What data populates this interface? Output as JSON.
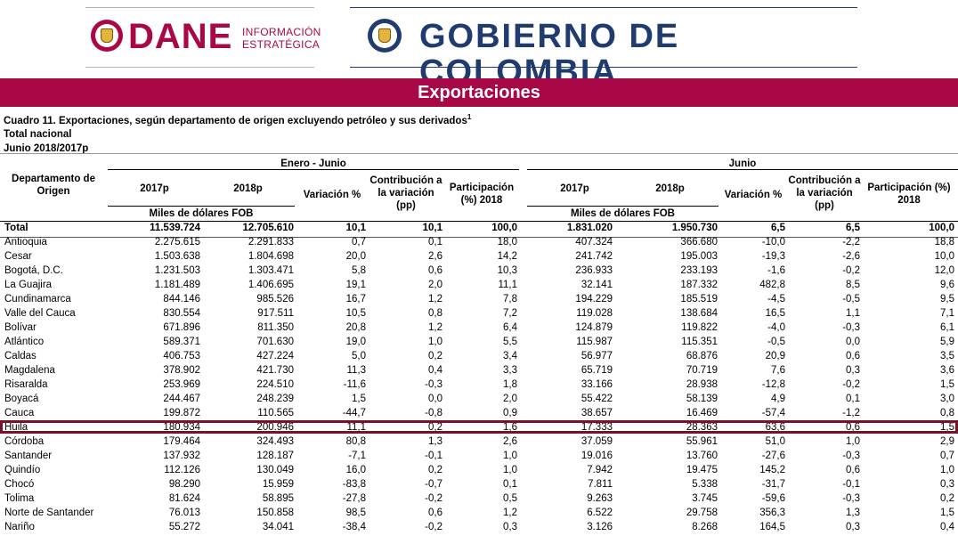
{
  "header": {
    "dane_logo_text": "DANE",
    "dane_subtitle_line1": "INFORMACIÓN",
    "dane_subtitle_line2": "ESTRATÉGICA",
    "gobierno_logo_text": "GOBIERNO DE COLOMBIA"
  },
  "banner": "Exportaciones",
  "titles": {
    "cuadro": "Cuadro 11. Exportaciones, según departamento de origen excluyendo petróleo y sus derivados",
    "footnote_mark": "1",
    "scope": "Total nacional",
    "period": "Junio 2018/2017p"
  },
  "table": {
    "col_departamento": "Departamento de Origen",
    "group_left": "Enero - Junio",
    "group_right": "Junio",
    "h_2017": "2017p",
    "h_2018": "2018p",
    "h_miles": "Miles de dólares FOB",
    "h_variacion": "Variación %",
    "h_contribucion": "Contribución a la variación (pp)",
    "h_participacion": "Participación (%) 2018",
    "rows": [
      {
        "name": "Total",
        "a": "11.539.724",
        "b": "12.705.610",
        "c": "10,1",
        "d": "10,1",
        "e": "100,0",
        "f": "1.831.020",
        "g": "1.950.730",
        "h": "6,5",
        "i": "6,5",
        "j": "100,0"
      },
      {
        "name": "Antioquia",
        "a": "2.275.615",
        "b": "2.291.833",
        "c": "0,7",
        "d": "0,1",
        "e": "18,0",
        "f": "407.324",
        "g": "366.680",
        "h": "-10,0",
        "i": "-2,2",
        "j": "18,8"
      },
      {
        "name": "Cesar",
        "a": "1.503.638",
        "b": "1.804.698",
        "c": "20,0",
        "d": "2,6",
        "e": "14,2",
        "f": "241.742",
        "g": "195.003",
        "h": "-19,3",
        "i": "-2,6",
        "j": "10,0"
      },
      {
        "name": "Bogotá, D.C.",
        "a": "1.231.503",
        "b": "1.303.471",
        "c": "5,8",
        "d": "0,6",
        "e": "10,3",
        "f": "236.933",
        "g": "233.193",
        "h": "-1,6",
        "i": "-0,2",
        "j": "12,0"
      },
      {
        "name": "La Guajira",
        "a": "1.181.489",
        "b": "1.406.695",
        "c": "19,1",
        "d": "2,0",
        "e": "11,1",
        "f": "32.141",
        "g": "187.332",
        "h": "482,8",
        "i": "8,5",
        "j": "9,6"
      },
      {
        "name": "Cundinamarca",
        "a": "844.146",
        "b": "985.526",
        "c": "16,7",
        "d": "1,2",
        "e": "7,8",
        "f": "194.229",
        "g": "185.519",
        "h": "-4,5",
        "i": "-0,5",
        "j": "9,5"
      },
      {
        "name": "Valle del Cauca",
        "a": "830.554",
        "b": "917.511",
        "c": "10,5",
        "d": "0,8",
        "e": "7,2",
        "f": "119.028",
        "g": "138.684",
        "h": "16,5",
        "i": "1,1",
        "j": "7,1"
      },
      {
        "name": "Bolívar",
        "a": "671.896",
        "b": "811.350",
        "c": "20,8",
        "d": "1,2",
        "e": "6,4",
        "f": "124.879",
        "g": "119.822",
        "h": "-4,0",
        "i": "-0,3",
        "j": "6,1"
      },
      {
        "name": "Atlántico",
        "a": "589.371",
        "b": "701.630",
        "c": "19,0",
        "d": "1,0",
        "e": "5,5",
        "f": "115.987",
        "g": "115.351",
        "h": "-0,5",
        "i": "0,0",
        "j": "5,9"
      },
      {
        "name": "Caldas",
        "a": "406.753",
        "b": "427.224",
        "c": "5,0",
        "d": "0,2",
        "e": "3,4",
        "f": "56.977",
        "g": "68.876",
        "h": "20,9",
        "i": "0,6",
        "j": "3,5"
      },
      {
        "name": "Magdalena",
        "a": "378.902",
        "b": "421.730",
        "c": "11,3",
        "d": "0,4",
        "e": "3,3",
        "f": "65.719",
        "g": "70.719",
        "h": "7,6",
        "i": "0,3",
        "j": "3,6"
      },
      {
        "name": "Risaralda",
        "a": "253.969",
        "b": "224.510",
        "c": "-11,6",
        "d": "-0,3",
        "e": "1,8",
        "f": "33.166",
        "g": "28.938",
        "h": "-12,8",
        "i": "-0,2",
        "j": "1,5"
      },
      {
        "name": "Boyacá",
        "a": "244.467",
        "b": "248.239",
        "c": "1,5",
        "d": "0,0",
        "e": "2,0",
        "f": "55.422",
        "g": "58.139",
        "h": "4,9",
        "i": "0,1",
        "j": "3,0"
      },
      {
        "name": "Cauca",
        "a": "199.872",
        "b": "110.565",
        "c": "-44,7",
        "d": "-0,8",
        "e": "0,9",
        "f": "38.657",
        "g": "16.469",
        "h": "-57,4",
        "i": "-1,2",
        "j": "0,8"
      },
      {
        "name": "Huila",
        "a": "180.934",
        "b": "200.946",
        "c": "11,1",
        "d": "0,2",
        "e": "1,6",
        "f": "17.333",
        "g": "28.363",
        "h": "63,6",
        "i": "0,6",
        "j": "1,5"
      },
      {
        "name": "Córdoba",
        "a": "179.464",
        "b": "324.493",
        "c": "80,8",
        "d": "1,3",
        "e": "2,6",
        "f": "37.059",
        "g": "55.961",
        "h": "51,0",
        "i": "1,0",
        "j": "2,9"
      },
      {
        "name": "Santander",
        "a": "137.932",
        "b": "128.187",
        "c": "-7,1",
        "d": "-0,1",
        "e": "1,0",
        "f": "19.016",
        "g": "13.760",
        "h": "-27,6",
        "i": "-0,3",
        "j": "0,7"
      },
      {
        "name": "Quindío",
        "a": "112.126",
        "b": "130.049",
        "c": "16,0",
        "d": "0,2",
        "e": "1,0",
        "f": "7.942",
        "g": "19.475",
        "h": "145,2",
        "i": "0,6",
        "j": "1,0"
      },
      {
        "name": "Chocó",
        "a": "98.290",
        "b": "15.959",
        "c": "-83,8",
        "d": "-0,7",
        "e": "0,1",
        "f": "7.811",
        "g": "5.338",
        "h": "-31,7",
        "i": "-0,1",
        "j": "0,3"
      },
      {
        "name": "Tolima",
        "a": "81.624",
        "b": "58.895",
        "c": "-27,8",
        "d": "-0,2",
        "e": "0,5",
        "f": "9.263",
        "g": "3.745",
        "h": "-59,6",
        "i": "-0,3",
        "j": "0,2"
      },
      {
        "name": "Norte de Santander",
        "a": "76.013",
        "b": "150.858",
        "c": "98,5",
        "d": "0,6",
        "e": "1,2",
        "f": "6.522",
        "g": "29.758",
        "h": "356,3",
        "i": "1,3",
        "j": "1,5"
      },
      {
        "name": "Nariño",
        "a": "55.272",
        "b": "34.041",
        "c": "-38,4",
        "d": "-0,2",
        "e": "0,3",
        "f": "3.126",
        "g": "8.268",
        "h": "164,5",
        "i": "0,3",
        "j": "0,4"
      }
    ]
  },
  "colors": {
    "dane": "#a80846",
    "gobierno": "#1f3b6f",
    "highlight": "#7b1028"
  }
}
